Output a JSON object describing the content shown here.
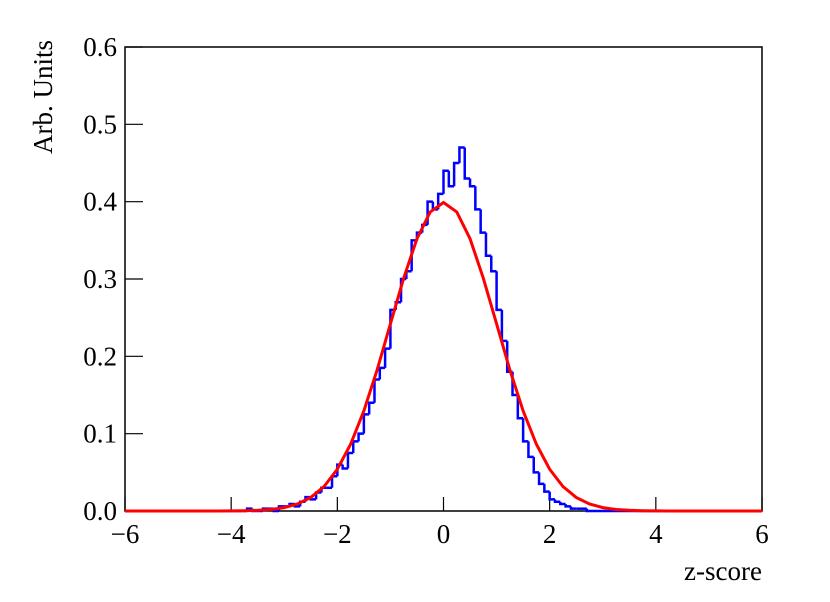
{
  "chart_data": {
    "type": "histogram",
    "x_label": "z-score",
    "y_label": "Arb. Units",
    "color": "#0000ff",
    "bins": [
      -6,
      -5.9,
      -5.8,
      -5.7,
      -5.6,
      -5.5,
      -5.4,
      -5.3,
      -5.2,
      -5.1,
      -5,
      -4.9,
      -4.8,
      -4.7,
      -4.6,
      -4.5,
      -4.4,
      -4.3,
      -4.2,
      -4.1,
      -4,
      -3.9,
      -3.8,
      -3.7,
      -3.6,
      -3.5,
      -3.4,
      -3.3,
      -3.2,
      -3.1,
      -3,
      -2.9,
      -2.8,
      -2.7,
      -2.6,
      -2.5,
      -2.4,
      -2.3,
      -2.2,
      -2.1,
      -2,
      -1.9,
      -1.8,
      -1.7,
      -1.6,
      -1.5,
      -1.4,
      -1.3,
      -1.2,
      -1.1,
      -1,
      -0.9,
      -0.8,
      -0.7,
      -0.6,
      -0.5,
      -0.4,
      -0.3,
      -0.2,
      -0.1,
      0,
      0.1,
      0.2,
      0.3,
      0.4,
      0.5,
      0.6,
      0.7,
      0.8,
      0.9,
      1,
      1.1,
      1.2,
      1.3,
      1.4,
      1.5,
      1.6,
      1.7,
      1.8,
      1.9,
      2,
      2.1,
      2.2,
      2.3,
      2.4,
      2.5,
      2.6,
      2.7,
      2.8,
      2.9,
      3,
      3.1,
      3.2,
      3.3,
      3.4,
      3.5,
      3.6,
      3.7,
      3.8,
      3.9,
      4,
      4.1,
      4.2,
      4.3,
      4.4,
      4.5,
      4.6,
      4.7,
      4.8,
      4.9,
      5,
      5.1,
      5.2,
      5.3,
      5.4,
      5.5,
      5.6,
      5.7,
      5.8,
      5.9,
      6
    ],
    "values": [
      0,
      0,
      0,
      0,
      0,
      0,
      0,
      0,
      0,
      0,
      0,
      0,
      0,
      0,
      0,
      0,
      0,
      0,
      0,
      0,
      0,
      0,
      0,
      0.003,
      0,
      0,
      0.003,
      0.003,
      0,
      0.006,
      0.006,
      0.009,
      0.006,
      0.012,
      0.018,
      0.015,
      0.024,
      0.03,
      0.03,
      0.045,
      0.06,
      0.055,
      0.075,
      0.09,
      0.1,
      0.125,
      0.14,
      0.17,
      0.185,
      0.21,
      0.26,
      0.27,
      0.3,
      0.31,
      0.35,
      0.36,
      0.37,
      0.4,
      0.39,
      0.41,
      0.44,
      0.42,
      0.45,
      0.47,
      0.43,
      0.42,
      0.39,
      0.36,
      0.33,
      0.31,
      0.26,
      0.22,
      0.18,
      0.15,
      0.12,
      0.09,
      0.07,
      0.05,
      0.035,
      0.025,
      0.015,
      0.012,
      0.009,
      0.006,
      0.003,
      0.003,
      0.003,
      0,
      0,
      0,
      0,
      0,
      0,
      0,
      0,
      0,
      0,
      0,
      0,
      0,
      0,
      0,
      0,
      0,
      0,
      0,
      0,
      0,
      0,
      0,
      0,
      0,
      0,
      0,
      0,
      0,
      0,
      0,
      0,
      0
    ],
    "overlay": {
      "type": "line",
      "color": "#ff0000",
      "x": [
        -6,
        -5.75,
        -5.5,
        -5.25,
        -5,
        -4.75,
        -4.5,
        -4.25,
        -4,
        -3.75,
        -3.5,
        -3.25,
        -3,
        -2.75,
        -2.5,
        -2.25,
        -2,
        -1.75,
        -1.5,
        -1.25,
        -1,
        -0.75,
        -0.5,
        -0.25,
        0,
        0.25,
        0.5,
        0.75,
        1,
        1.25,
        1.5,
        1.75,
        2,
        2.25,
        2.5,
        2.75,
        3,
        3.25,
        3.5,
        3.75,
        4,
        4.25,
        4.5,
        4.75,
        5,
        5.25,
        5.5,
        5.75,
        6
      ],
      "values": [
        0,
        0,
        0,
        0,
        0,
        0,
        0,
        0,
        0.0001,
        0.0004,
        0.0009,
        0.002,
        0.0044,
        0.0091,
        0.0175,
        0.0317,
        0.054,
        0.0863,
        0.1295,
        0.1826,
        0.242,
        0.3011,
        0.3521,
        0.3867,
        0.3989,
        0.3867,
        0.3521,
        0.3011,
        0.242,
        0.1826,
        0.1295,
        0.0863,
        0.054,
        0.0317,
        0.0175,
        0.0091,
        0.0044,
        0.002,
        0.0009,
        0.0004,
        0.0001,
        0,
        0,
        0,
        0,
        0,
        0,
        0,
        0
      ]
    },
    "xlim": [
      -6,
      6
    ],
    "ylim": [
      0,
      0.6
    ],
    "xticks": [
      {
        "value": -6,
        "label": "−6"
      },
      {
        "value": -4,
        "label": "−4"
      },
      {
        "value": -2,
        "label": "−2"
      },
      0,
      2,
      4,
      6
    ],
    "yticks": [
      {
        "value": 0,
        "label": "0.0"
      },
      0.1,
      0.2,
      0.3,
      0.4,
      0.5,
      0.6
    ]
  }
}
